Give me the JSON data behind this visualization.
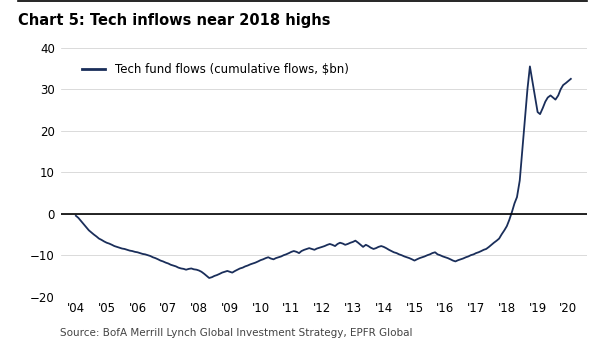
{
  "title": "Chart 5: Tech inflows near 2018 highs",
  "source": "Source: BofA Merrill Lynch Global Investment Strategy, EPFR Global",
  "legend_label": "Tech fund flows (cumulative flows, $bn)",
  "line_color": "#1a2e5a",
  "background_color": "#ffffff",
  "ylim": [
    -20,
    40
  ],
  "yticks": [
    -20,
    -10,
    0,
    10,
    20,
    30,
    40
  ],
  "xtick_labels": [
    "'04",
    "'05",
    "'06",
    "'07",
    "'08",
    "'09",
    "'10",
    "'11",
    "'12",
    "'13",
    "'14",
    "'15",
    "'16",
    "'17",
    "'18",
    "'19",
    "'20"
  ],
  "zero_line_color": "#000000",
  "title_fontsize": 10.5,
  "axis_fontsize": 8.5,
  "source_fontsize": 7.5,
  "x_values": [
    2004.0,
    2004.08,
    2004.17,
    2004.25,
    2004.33,
    2004.42,
    2004.5,
    2004.58,
    2004.67,
    2004.75,
    2004.83,
    2004.92,
    2005.0,
    2005.08,
    2005.17,
    2005.25,
    2005.33,
    2005.42,
    2005.5,
    2005.58,
    2005.67,
    2005.75,
    2005.83,
    2005.92,
    2006.0,
    2006.08,
    2006.17,
    2006.25,
    2006.33,
    2006.42,
    2006.5,
    2006.58,
    2006.67,
    2006.75,
    2006.83,
    2006.92,
    2007.0,
    2007.08,
    2007.17,
    2007.25,
    2007.33,
    2007.42,
    2007.5,
    2007.58,
    2007.67,
    2007.75,
    2007.83,
    2007.92,
    2008.0,
    2008.08,
    2008.17,
    2008.25,
    2008.33,
    2008.42,
    2008.5,
    2008.58,
    2008.67,
    2008.75,
    2008.83,
    2008.92,
    2009.0,
    2009.08,
    2009.17,
    2009.25,
    2009.33,
    2009.42,
    2009.5,
    2009.58,
    2009.67,
    2009.75,
    2009.83,
    2009.92,
    2010.0,
    2010.08,
    2010.17,
    2010.25,
    2010.33,
    2010.42,
    2010.5,
    2010.58,
    2010.67,
    2010.75,
    2010.83,
    2010.92,
    2011.0,
    2011.08,
    2011.17,
    2011.25,
    2011.33,
    2011.42,
    2011.5,
    2011.58,
    2011.67,
    2011.75,
    2011.83,
    2011.92,
    2012.0,
    2012.08,
    2012.17,
    2012.25,
    2012.33,
    2012.42,
    2012.5,
    2012.58,
    2012.67,
    2012.75,
    2012.83,
    2012.92,
    2013.0,
    2013.08,
    2013.17,
    2013.25,
    2013.33,
    2013.42,
    2013.5,
    2013.58,
    2013.67,
    2013.75,
    2013.83,
    2013.92,
    2014.0,
    2014.08,
    2014.17,
    2014.25,
    2014.33,
    2014.42,
    2014.5,
    2014.58,
    2014.67,
    2014.75,
    2014.83,
    2014.92,
    2015.0,
    2015.08,
    2015.17,
    2015.25,
    2015.33,
    2015.42,
    2015.5,
    2015.58,
    2015.67,
    2015.75,
    2015.83,
    2015.92,
    2016.0,
    2016.08,
    2016.17,
    2016.25,
    2016.33,
    2016.42,
    2016.5,
    2016.58,
    2016.67,
    2016.75,
    2016.83,
    2016.92,
    2017.0,
    2017.08,
    2017.17,
    2017.25,
    2017.33,
    2017.42,
    2017.5,
    2017.58,
    2017.67,
    2017.75,
    2017.83,
    2017.92,
    2018.0,
    2018.08,
    2018.17,
    2018.25,
    2018.33,
    2018.42,
    2018.5,
    2018.58,
    2018.67,
    2018.75,
    2018.83,
    2018.92,
    2019.0,
    2019.08,
    2019.17,
    2019.25,
    2019.33,
    2019.42,
    2019.5,
    2019.58,
    2019.67,
    2019.75,
    2019.83,
    2019.92,
    2020.0,
    2020.08
  ],
  "y_values": [
    -0.5,
    -1.0,
    -1.8,
    -2.5,
    -3.2,
    -4.0,
    -4.5,
    -5.0,
    -5.5,
    -6.0,
    -6.3,
    -6.7,
    -7.0,
    -7.2,
    -7.5,
    -7.8,
    -8.0,
    -8.2,
    -8.4,
    -8.5,
    -8.7,
    -8.9,
    -9.0,
    -9.2,
    -9.3,
    -9.5,
    -9.7,
    -9.8,
    -10.0,
    -10.2,
    -10.5,
    -10.7,
    -11.0,
    -11.3,
    -11.5,
    -11.8,
    -12.0,
    -12.3,
    -12.5,
    -12.7,
    -13.0,
    -13.2,
    -13.3,
    -13.5,
    -13.3,
    -13.2,
    -13.4,
    -13.5,
    -13.7,
    -14.0,
    -14.5,
    -15.0,
    -15.5,
    -15.3,
    -15.0,
    -14.8,
    -14.5,
    -14.2,
    -14.0,
    -13.8,
    -14.0,
    -14.2,
    -13.8,
    -13.5,
    -13.2,
    -13.0,
    -12.7,
    -12.5,
    -12.2,
    -12.0,
    -11.8,
    -11.5,
    -11.2,
    -11.0,
    -10.7,
    -10.5,
    -10.8,
    -11.0,
    -10.7,
    -10.5,
    -10.3,
    -10.0,
    -9.8,
    -9.5,
    -9.2,
    -9.0,
    -9.2,
    -9.5,
    -9.0,
    -8.7,
    -8.5,
    -8.3,
    -8.5,
    -8.7,
    -8.4,
    -8.2,
    -8.0,
    -7.8,
    -7.5,
    -7.3,
    -7.5,
    -7.8,
    -7.3,
    -7.0,
    -7.2,
    -7.5,
    -7.3,
    -7.0,
    -6.8,
    -6.5,
    -7.0,
    -7.5,
    -8.0,
    -7.5,
    -7.8,
    -8.2,
    -8.5,
    -8.3,
    -8.0,
    -7.8,
    -8.0,
    -8.3,
    -8.7,
    -9.0,
    -9.3,
    -9.5,
    -9.8,
    -10.0,
    -10.3,
    -10.5,
    -10.7,
    -11.0,
    -11.3,
    -11.0,
    -10.7,
    -10.5,
    -10.3,
    -10.0,
    -9.8,
    -9.5,
    -9.3,
    -9.8,
    -10.0,
    -10.3,
    -10.5,
    -10.7,
    -11.0,
    -11.3,
    -11.5,
    -11.2,
    -11.0,
    -10.8,
    -10.5,
    -10.3,
    -10.0,
    -9.8,
    -9.5,
    -9.3,
    -9.0,
    -8.7,
    -8.5,
    -8.0,
    -7.5,
    -7.0,
    -6.5,
    -6.0,
    -5.0,
    -4.0,
    -3.0,
    -1.5,
    0.5,
    2.5,
    4.0,
    8.0,
    15.0,
    22.0,
    30.0,
    35.5,
    32.0,
    28.0,
    24.5,
    24.0,
    25.5,
    27.0,
    28.0,
    28.5,
    28.0,
    27.5,
    28.5,
    30.0,
    31.0,
    31.5,
    32.0,
    32.5
  ]
}
